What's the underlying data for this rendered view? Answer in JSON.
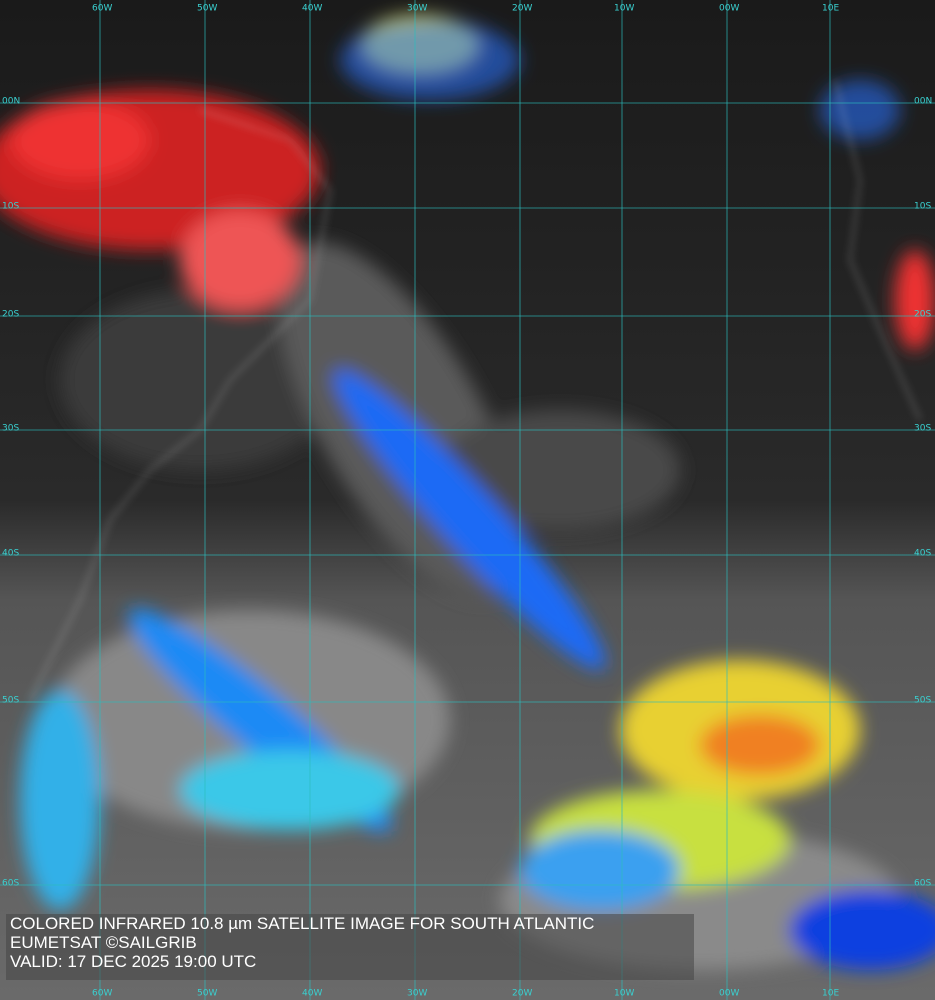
{
  "grid": {
    "longitudes": [
      "60W",
      "50W",
      "40W",
      "30W",
      "20W",
      "10W",
      "00W",
      "10E"
    ],
    "latitudes": [
      "00N",
      "10S",
      "20S",
      "30S",
      "40S",
      "50S",
      "60S"
    ]
  },
  "caption": {
    "lines": [
      "COLORED INFRARED 10.8 µm SATELLITE IMAGE FOR SOUTH ATLANTIC",
      "EUMETSAT ©SAILGRIB",
      "VALID:  17 DEC 2025 19:00 UTC"
    ]
  }
}
